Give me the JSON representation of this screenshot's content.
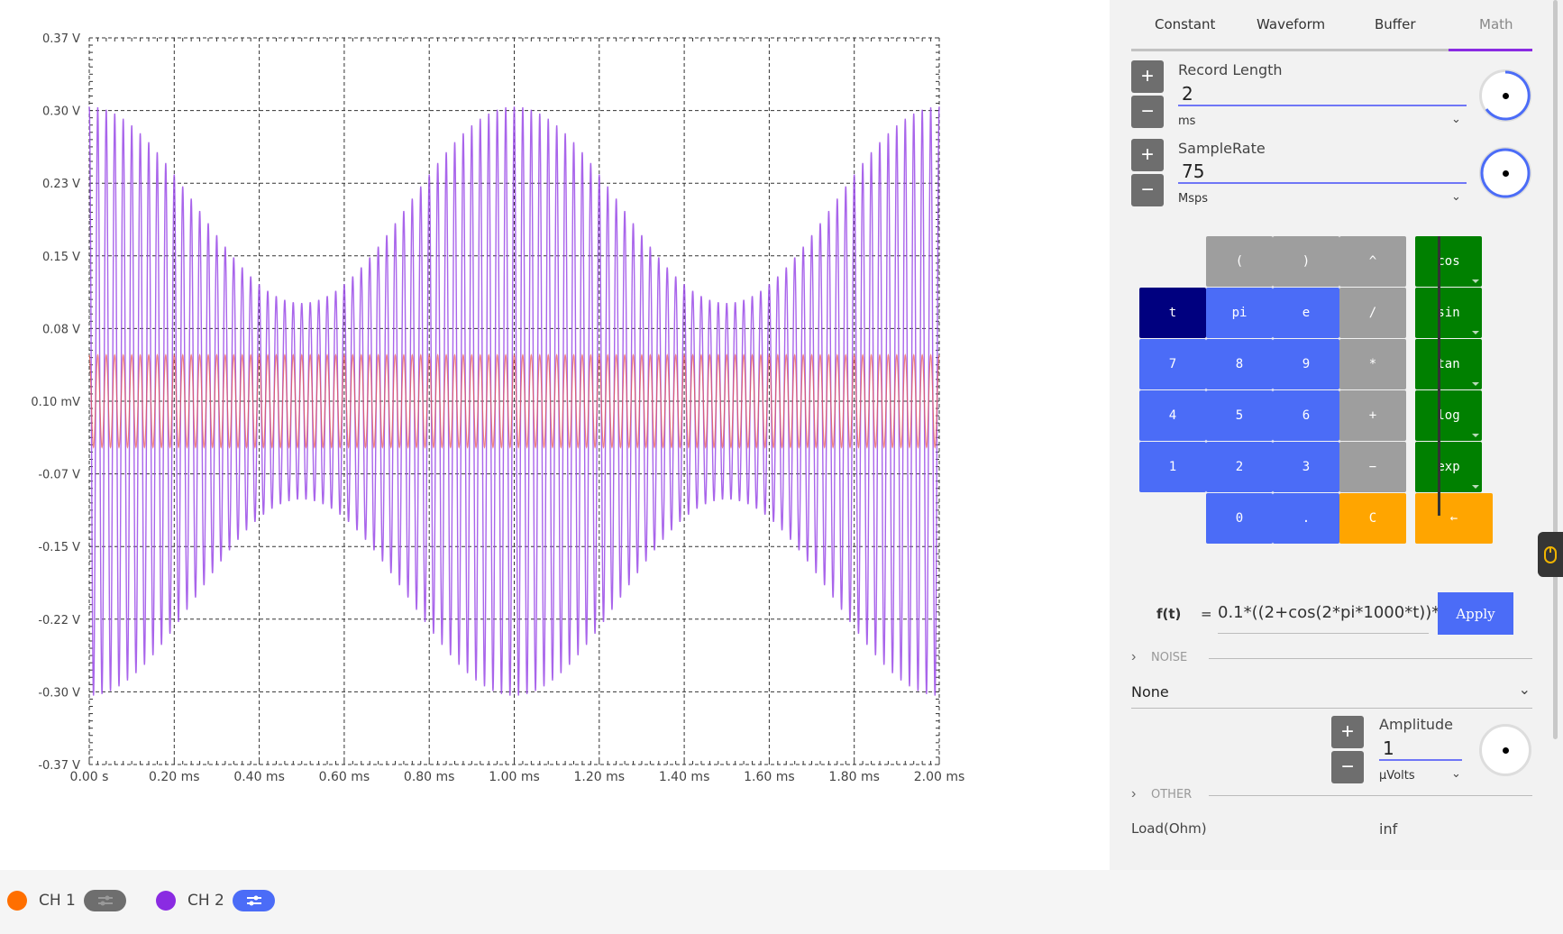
{
  "chart_data": {
    "type": "line",
    "title": "",
    "xlabel": "",
    "ylabel": "",
    "y_tick_labels": [
      "0.37 V",
      "0.30 V",
      "0.23 V",
      "0.15 V",
      "0.08 V",
      "0.10 mV",
      "-0.07 V",
      "-0.15 V",
      "-0.22 V",
      "-0.30 V",
      "-0.37 V"
    ],
    "x_tick_labels": [
      "0.00 s",
      "0.20 ms",
      "0.40 ms",
      "0.60 ms",
      "0.80 ms",
      "1.00 ms",
      "1.20 ms",
      "1.40 ms",
      "1.60 ms",
      "1.80 ms",
      "2.00 ms"
    ],
    "xlim_ms": [
      0,
      2
    ],
    "ylim_v": [
      -0.37,
      0.37
    ],
    "grid": true,
    "series": [
      {
        "color": "#9a4ae8",
        "envelope": "0.1*(2+cos(2*pi*1000*t))",
        "amplitude_v": [
          0.1,
          0.3
        ],
        "cycles_per_ms": 50
      },
      {
        "color": "#e8554a",
        "amplitude_v": 0.047,
        "cycles_per_ms": 50
      }
    ]
  },
  "channels": [
    {
      "name": "CH 1",
      "color": "#ff6f00",
      "btn_color": "#6e6e6e"
    },
    {
      "name": "CH 2",
      "color": "#8a2be2",
      "btn_color": "#4b6cf7"
    }
  ],
  "tabs": [
    "Constant",
    "Waveform",
    "Buffer",
    "Math"
  ],
  "record_length": {
    "label": "Record Length",
    "value": "2",
    "unit": "ms"
  },
  "sample_rate": {
    "label": "SampleRate",
    "value": "75",
    "unit": "Msps"
  },
  "calculator": {
    "keys": [
      {
        "label": "(",
        "style": "gray"
      },
      {
        "label": ")",
        "style": "gray"
      },
      {
        "label": "^",
        "style": "gray"
      },
      {
        "label": "cos",
        "style": "green"
      },
      {
        "label": "t",
        "style": "navy"
      },
      {
        "label": "pi",
        "style": "blue"
      },
      {
        "label": "e",
        "style": "blue"
      },
      {
        "label": "/",
        "style": "gray"
      },
      {
        "label": "sin",
        "style": "green"
      },
      {
        "label": "7",
        "style": "blue"
      },
      {
        "label": "8",
        "style": "blue"
      },
      {
        "label": "9",
        "style": "blue"
      },
      {
        "label": "*",
        "style": "gray"
      },
      {
        "label": "tan",
        "style": "green"
      },
      {
        "label": "4",
        "style": "blue"
      },
      {
        "label": "5",
        "style": "blue"
      },
      {
        "label": "6",
        "style": "blue"
      },
      {
        "label": "+",
        "style": "gray"
      },
      {
        "label": "log",
        "style": "green"
      },
      {
        "label": "1",
        "style": "blue"
      },
      {
        "label": "2",
        "style": "blue"
      },
      {
        "label": "3",
        "style": "blue"
      },
      {
        "label": "−",
        "style": "gray"
      },
      {
        "label": "exp",
        "style": "green"
      },
      {
        "label": "0",
        "style": "blue"
      },
      {
        "label": ".",
        "style": "blue"
      },
      {
        "label": "C",
        "style": "orange"
      },
      {
        "label": "←",
        "style": "orange"
      }
    ]
  },
  "function": {
    "label": "f(t)",
    "eq": "=",
    "value": "0.1*((2+cos(2*pi*1000*t))*",
    "apply_label": "Apply"
  },
  "noise": {
    "section_label": "NOISE",
    "type": "None",
    "amplitude_label": "Amplitude",
    "amplitude_value": "1",
    "amplitude_unit": "μVolts"
  },
  "other": {
    "section_label": "OTHER",
    "cutoff_left": "Load(Ohm)",
    "cutoff_right": "inf"
  },
  "icons": {
    "plus": "plus-icon",
    "minus": "minus-icon",
    "chevron": "chevron-down-icon",
    "settings": "sliders-icon",
    "mouse": "mouse-icon"
  }
}
